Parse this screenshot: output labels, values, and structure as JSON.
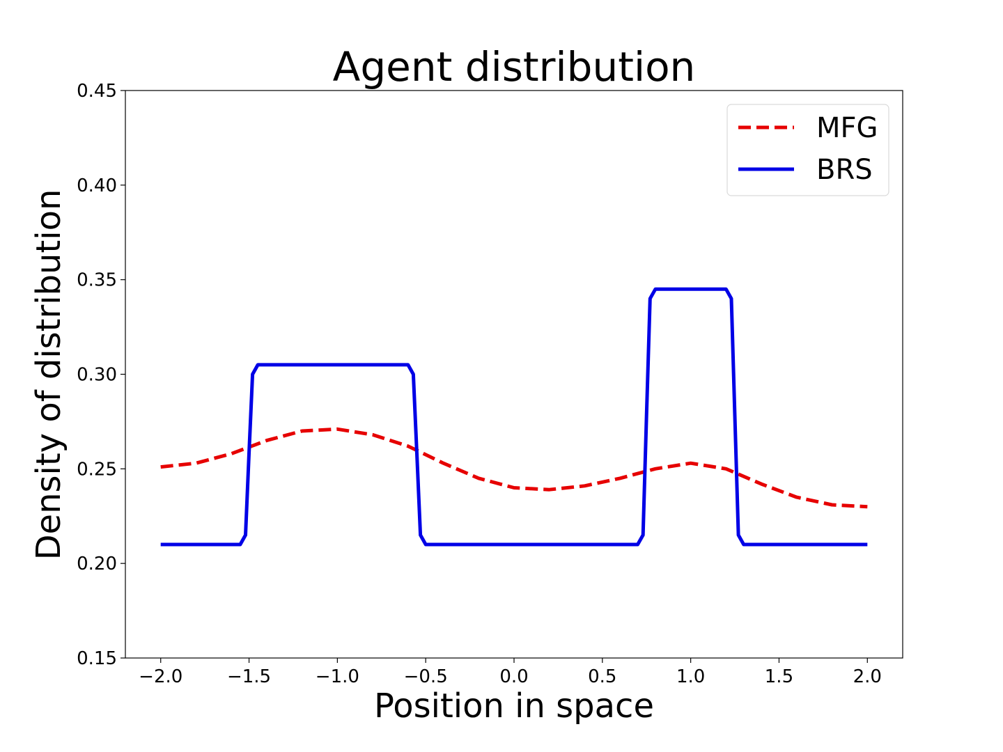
{
  "chart_data": {
    "type": "line",
    "title": "Agent distribution",
    "xlabel": "Position in space",
    "ylabel": "Density of distribution",
    "xlim": [
      -2.2,
      2.2
    ],
    "ylim": [
      0.15,
      0.45
    ],
    "xticks": [
      -2.0,
      -1.5,
      -1.0,
      -0.5,
      0.0,
      0.5,
      1.0,
      1.5,
      2.0
    ],
    "xtick_labels": [
      "−2.0",
      "−1.5",
      "−1.0",
      "−0.5",
      "0.0",
      "0.5",
      "1.0",
      "1.5",
      "2.0"
    ],
    "yticks": [
      0.15,
      0.2,
      0.25,
      0.3,
      0.35,
      0.4,
      0.45
    ],
    "ytick_labels": [
      "0.15",
      "0.20",
      "0.25",
      "0.30",
      "0.35",
      "0.40",
      "0.45"
    ],
    "grid": false,
    "legend_position": "top-right",
    "series": [
      {
        "name": "MFG",
        "color": "#e60000",
        "style": "dashed",
        "x": [
          -2.0,
          -1.8,
          -1.6,
          -1.4,
          -1.2,
          -1.0,
          -0.8,
          -0.6,
          -0.4,
          -0.2,
          0.0,
          0.2,
          0.4,
          0.6,
          0.8,
          1.0,
          1.2,
          1.4,
          1.6,
          1.8,
          2.0
        ],
        "y": [
          0.251,
          0.253,
          0.258,
          0.265,
          0.27,
          0.271,
          0.268,
          0.262,
          0.253,
          0.245,
          0.24,
          0.239,
          0.241,
          0.245,
          0.25,
          0.253,
          0.25,
          0.242,
          0.235,
          0.231,
          0.23
        ]
      },
      {
        "name": "BRS",
        "color": "#0000e6",
        "style": "solid",
        "x": [
          -2.0,
          -1.55,
          -1.52,
          -1.5,
          -1.48,
          -1.45,
          -0.6,
          -0.57,
          -0.55,
          -0.53,
          -0.5,
          -0.47,
          0.7,
          0.73,
          0.75,
          0.77,
          0.8,
          1.2,
          1.23,
          1.25,
          1.27,
          1.3,
          2.0
        ],
        "y": [
          0.21,
          0.21,
          0.215,
          0.258,
          0.3,
          0.305,
          0.305,
          0.3,
          0.258,
          0.215,
          0.21,
          0.21,
          0.21,
          0.215,
          0.278,
          0.34,
          0.345,
          0.345,
          0.34,
          0.278,
          0.215,
          0.21,
          0.21
        ]
      }
    ]
  }
}
